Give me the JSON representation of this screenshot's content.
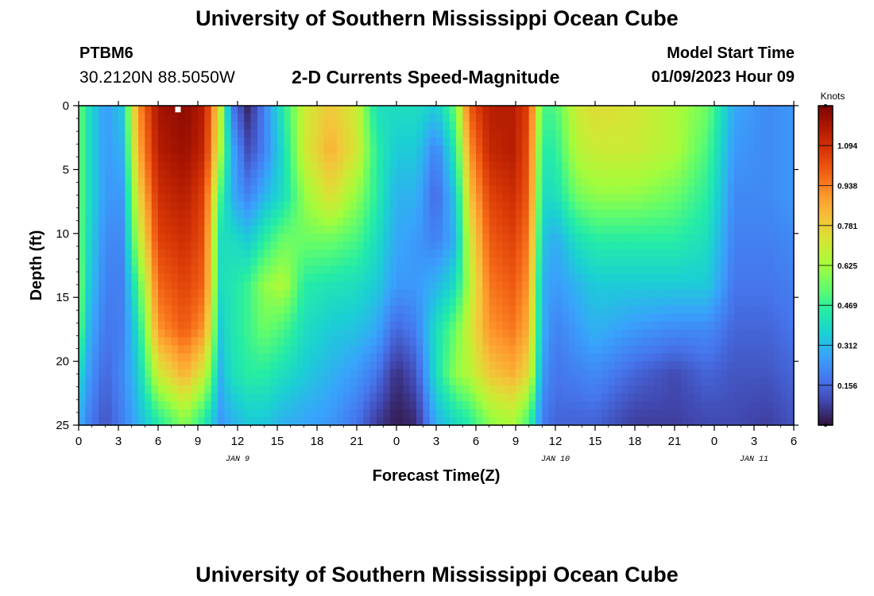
{
  "header": {
    "title": "University of Southern Mississippi Ocean Cube",
    "station": "PTBM6",
    "coordinates": "30.2120N  88.5050W",
    "subtitle": "2-D Currents Speed-Magnitude",
    "model_start_label": "Model Start Time",
    "model_start_value": "01/09/2023 Hour 09"
  },
  "footer": {
    "title": "University of Southern Mississippi Ocean Cube"
  },
  "chart_data": {
    "type": "heatmap",
    "title": "2-D Currents Speed-Magnitude",
    "xlabel": "Forecast Time(Z)",
    "ylabel": "Depth (ft)",
    "x_range_hours": [
      0,
      54
    ],
    "x_ticks": [
      0,
      3,
      6,
      9,
      12,
      15,
      18,
      21,
      24,
      27,
      30,
      33,
      36,
      39,
      42,
      45,
      48,
      51,
      54
    ],
    "x_tick_labels": [
      "0",
      "3",
      "6",
      "9",
      "12",
      "15",
      "18",
      "21",
      "0",
      "3",
      "6",
      "9",
      "12",
      "15",
      "18",
      "21",
      "0",
      "3",
      "6"
    ],
    "date_labels": [
      {
        "hour": 12,
        "label": "JAN 9"
      },
      {
        "hour": 36,
        "label": "JAN 10"
      },
      {
        "hour": 51,
        "label": "JAN 11"
      }
    ],
    "y_range_ft": [
      0,
      25
    ],
    "y_ticks": [
      0,
      5,
      10,
      15,
      20,
      25
    ],
    "y_tick_labels": [
      "0",
      "5",
      "10",
      "15",
      "20",
      "25"
    ],
    "colorbar": {
      "unit": "Knots",
      "min": 0,
      "max": 1.25,
      "tick_values": [
        1.094,
        0.938,
        0.781,
        0.625,
        0.469,
        0.312,
        0.156
      ],
      "tick_labels": [
        "1.094",
        "0.938",
        "0.781",
        "0.625",
        "0.469",
        "0.312",
        "0.156"
      ],
      "colors": [
        "#30123b",
        "#4145ab",
        "#4675ed",
        "#39a2fc",
        "#1bcfd4",
        "#24eca6",
        "#61fc6c",
        "#a4fc3b",
        "#d1e834",
        "#f3c63a",
        "#fe9b2d",
        "#f36315",
        "#d93806",
        "#b11901",
        "#7a0403"
      ]
    },
    "columns": [
      {
        "x": 0,
        "v": [
          0.55,
          0.55,
          0.55,
          0.55,
          0.58,
          0.55,
          0.4,
          0.3
        ]
      },
      {
        "x": 0.8,
        "v": [
          0.4,
          0.4,
          0.4,
          0.38,
          0.35,
          0.3,
          0.25,
          0.2
        ]
      },
      {
        "x": 2,
        "v": [
          0.25,
          0.25,
          0.25,
          0.22,
          0.2,
          0.18,
          0.15,
          0.12
        ]
      },
      {
        "x": 3.3,
        "v": [
          0.35,
          0.3,
          0.25,
          0.22,
          0.2,
          0.2,
          0.22,
          0.2
        ]
      },
      {
        "x": 4.5,
        "v": [
          0.9,
          0.85,
          0.75,
          0.65,
          0.5,
          0.4,
          0.35,
          0.3
        ]
      },
      {
        "x": 6,
        "v": [
          1.18,
          1.15,
          1.1,
          1.05,
          0.98,
          0.9,
          0.7,
          0.45
        ]
      },
      {
        "x": 8,
        "v": [
          1.22,
          1.2,
          1.15,
          1.1,
          1.05,
          1.0,
          0.85,
          0.6
        ]
      },
      {
        "x": 9.5,
        "v": [
          1.15,
          1.12,
          1.05,
          1.02,
          0.98,
          0.9,
          0.7,
          0.45
        ]
      },
      {
        "x": 10.7,
        "v": [
          0.7,
          0.65,
          0.5,
          0.4,
          0.4,
          0.35,
          0.3,
          0.25
        ]
      },
      {
        "x": 11.5,
        "v": [
          0.2,
          0.3,
          0.3,
          0.4,
          0.42,
          0.42,
          0.4,
          0.3
        ]
      },
      {
        "x": 12.8,
        "v": [
          0.03,
          0.1,
          0.2,
          0.35,
          0.48,
          0.48,
          0.45,
          0.35
        ]
      },
      {
        "x": 14,
        "v": [
          0.2,
          0.2,
          0.3,
          0.45,
          0.6,
          0.55,
          0.45,
          0.35
        ]
      },
      {
        "x": 15.5,
        "v": [
          0.45,
          0.4,
          0.4,
          0.55,
          0.65,
          0.5,
          0.4,
          0.3
        ]
      },
      {
        "x": 17,
        "v": [
          0.7,
          0.7,
          0.6,
          0.55,
          0.45,
          0.4,
          0.35,
          0.28
        ]
      },
      {
        "x": 19,
        "v": [
          0.8,
          0.85,
          0.75,
          0.55,
          0.42,
          0.35,
          0.3,
          0.25
        ]
      },
      {
        "x": 21,
        "v": [
          0.7,
          0.72,
          0.6,
          0.5,
          0.4,
          0.33,
          0.25,
          0.18
        ]
      },
      {
        "x": 22.5,
        "v": [
          0.4,
          0.45,
          0.45,
          0.4,
          0.35,
          0.28,
          0.18,
          0.08
        ]
      },
      {
        "x": 24,
        "v": [
          0.4,
          0.35,
          0.3,
          0.28,
          0.25,
          0.15,
          0.05,
          0.02
        ]
      },
      {
        "x": 25.5,
        "v": [
          0.4,
          0.35,
          0.3,
          0.25,
          0.25,
          0.2,
          0.12,
          0.05
        ]
      },
      {
        "x": 27,
        "v": [
          0.35,
          0.2,
          0.15,
          0.2,
          0.3,
          0.4,
          0.4,
          0.3
        ]
      },
      {
        "x": 28.5,
        "v": [
          0.55,
          0.45,
          0.35,
          0.3,
          0.4,
          0.55,
          0.6,
          0.4
        ]
      },
      {
        "x": 29.5,
        "v": [
          1.0,
          0.9,
          0.8,
          0.7,
          0.65,
          0.7,
          0.65,
          0.45
        ]
      },
      {
        "x": 31,
        "v": [
          1.15,
          1.12,
          1.05,
          1.0,
          0.95,
          0.9,
          0.8,
          0.6
        ]
      },
      {
        "x": 32.8,
        "v": [
          1.15,
          1.15,
          1.1,
          1.05,
          1.0,
          0.95,
          0.85,
          0.65
        ]
      },
      {
        "x": 34,
        "v": [
          1.05,
          1.02,
          1.0,
          0.95,
          0.9,
          0.85,
          0.75,
          0.5
        ]
      },
      {
        "x": 35,
        "v": [
          0.5,
          0.45,
          0.4,
          0.35,
          0.3,
          0.3,
          0.25,
          0.2
        ]
      },
      {
        "x": 36,
        "v": [
          0.5,
          0.45,
          0.4,
          0.28,
          0.25,
          0.2,
          0.18,
          0.15
        ]
      },
      {
        "x": 37.5,
        "v": [
          0.7,
          0.65,
          0.55,
          0.4,
          0.3,
          0.25,
          0.2,
          0.15
        ]
      },
      {
        "x": 39,
        "v": [
          0.75,
          0.7,
          0.6,
          0.45,
          0.35,
          0.3,
          0.22,
          0.15
        ]
      },
      {
        "x": 42,
        "v": [
          0.72,
          0.7,
          0.6,
          0.45,
          0.35,
          0.25,
          0.15,
          0.08
        ]
      },
      {
        "x": 45,
        "v": [
          0.65,
          0.65,
          0.55,
          0.45,
          0.35,
          0.22,
          0.1,
          0.08
        ]
      },
      {
        "x": 47.5,
        "v": [
          0.55,
          0.5,
          0.45,
          0.4,
          0.35,
          0.22,
          0.15,
          0.1
        ]
      },
      {
        "x": 49.5,
        "v": [
          0.28,
          0.25,
          0.22,
          0.2,
          0.18,
          0.15,
          0.12,
          0.1
        ]
      },
      {
        "x": 52,
        "v": [
          0.22,
          0.22,
          0.22,
          0.2,
          0.18,
          0.15,
          0.12,
          0.08
        ]
      },
      {
        "x": 54,
        "v": [
          0.25,
          0.25,
          0.25,
          0.22,
          0.2,
          0.18,
          0.15,
          0.12
        ]
      }
    ],
    "row_depths_ft": [
      0,
      3.5,
      7,
      10.5,
      14,
      17.5,
      21,
      24.5
    ],
    "marker": {
      "hour": 7.5,
      "depth_ft": 0.3,
      "color": "#ffffff"
    }
  }
}
